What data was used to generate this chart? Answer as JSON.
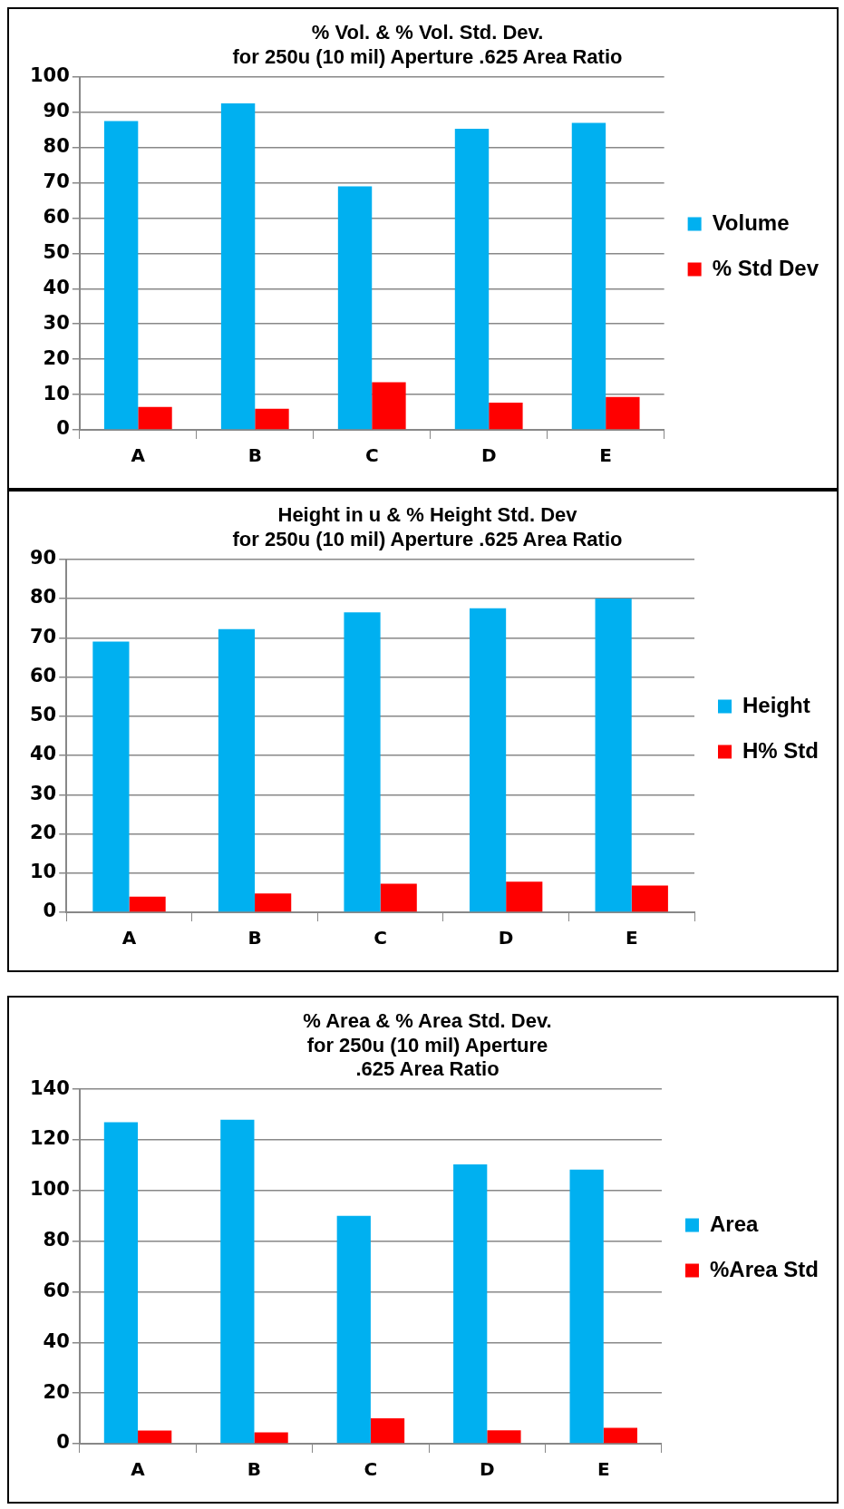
{
  "chart_data": [
    {
      "type": "bar",
      "title": "% Vol. & % Vol. Std. Dev.\nfor 250u (10 mil) Aperture .625 Area Ratio",
      "categories": [
        "A",
        "B",
        "C",
        "D",
        "E"
      ],
      "series": [
        {
          "name": "Volume",
          "color": "#00b0f0",
          "values": [
            87.5,
            92.5,
            69,
            85.3,
            87
          ]
        },
        {
          "name": "% Std Dev",
          "color": "#ff0000",
          "values": [
            6.5,
            6,
            13.5,
            7.7,
            9.3
          ]
        }
      ],
      "ylim": [
        0,
        100
      ],
      "yticks": [
        0,
        10,
        20,
        30,
        40,
        50,
        60,
        70,
        80,
        90,
        100
      ],
      "grid": "y",
      "legend": "right"
    },
    {
      "type": "bar",
      "title": "Height in u & % Height Std. Dev\nfor 250u (10 mil) Aperture .625 Area Ratio",
      "categories": [
        "A",
        "B",
        "C",
        "D",
        "E"
      ],
      "series": [
        {
          "name": "Height",
          "color": "#00b0f0",
          "values": [
            69,
            72.2,
            76.5,
            77.5,
            80
          ]
        },
        {
          "name": "H% Std",
          "color": "#ff0000",
          "values": [
            4,
            4.8,
            7.3,
            7.8,
            6.8
          ]
        }
      ],
      "ylim": [
        0,
        90
      ],
      "yticks": [
        0,
        10,
        20,
        30,
        40,
        50,
        60,
        70,
        80,
        90
      ],
      "grid": "y",
      "legend": "right"
    },
    {
      "type": "bar",
      "title": "% Area & % Area Std. Dev.\nfor 250u (10 mil) Aperture\n.625 Area Ratio",
      "categories": [
        "A",
        "B",
        "C",
        "D",
        "E"
      ],
      "series": [
        {
          "name": "Area",
          "color": "#00b0f0",
          "values": [
            127,
            128,
            90,
            110.3,
            108.3
          ]
        },
        {
          "name": "%Area Std",
          "color": "#ff0000",
          "values": [
            5.2,
            4.5,
            10,
            5.3,
            6.3
          ]
        }
      ],
      "ylim": [
        0,
        140
      ],
      "yticks": [
        0,
        20,
        40,
        60,
        80,
        100,
        120,
        140
      ],
      "grid": "y",
      "legend": "right"
    }
  ]
}
